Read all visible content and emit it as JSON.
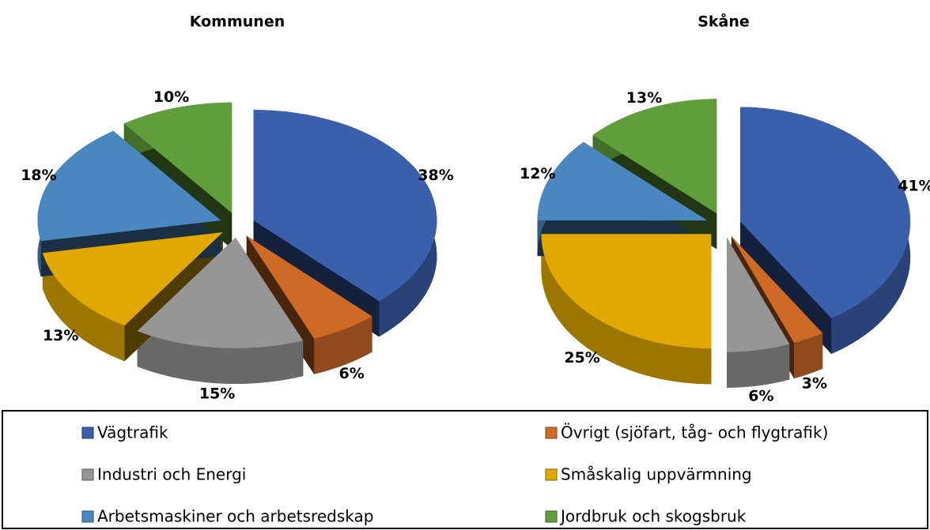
{
  "chart_data": [
    {
      "type": "pie",
      "title": "Kommunen",
      "categories": [
        "Vägtrafik",
        "Övrigt (sjöfart, tåg- och flygtrafik)",
        "Industri och Energi",
        "Småskalig uppvärmning",
        "Arbetsmaskiner och arbetsredskap",
        "Jordbruk och skogsbruk"
      ],
      "colors": [
        "#3a5fad",
        "#cf6a26",
        "#969696",
        "#e0a800",
        "#4a86c0",
        "#5f9e3a"
      ],
      "values": [
        38,
        6,
        15,
        13,
        18,
        10
      ],
      "value_labels": [
        "38%",
        "6%",
        "15%",
        "13%",
        "18%",
        "10%"
      ]
    },
    {
      "type": "pie",
      "title": "Skåne",
      "values": [
        41,
        3,
        6,
        25,
        12,
        13
      ],
      "value_labels": [
        "41%",
        "3%",
        "6%",
        "25%",
        "12%",
        "13%"
      ]
    }
  ]
}
